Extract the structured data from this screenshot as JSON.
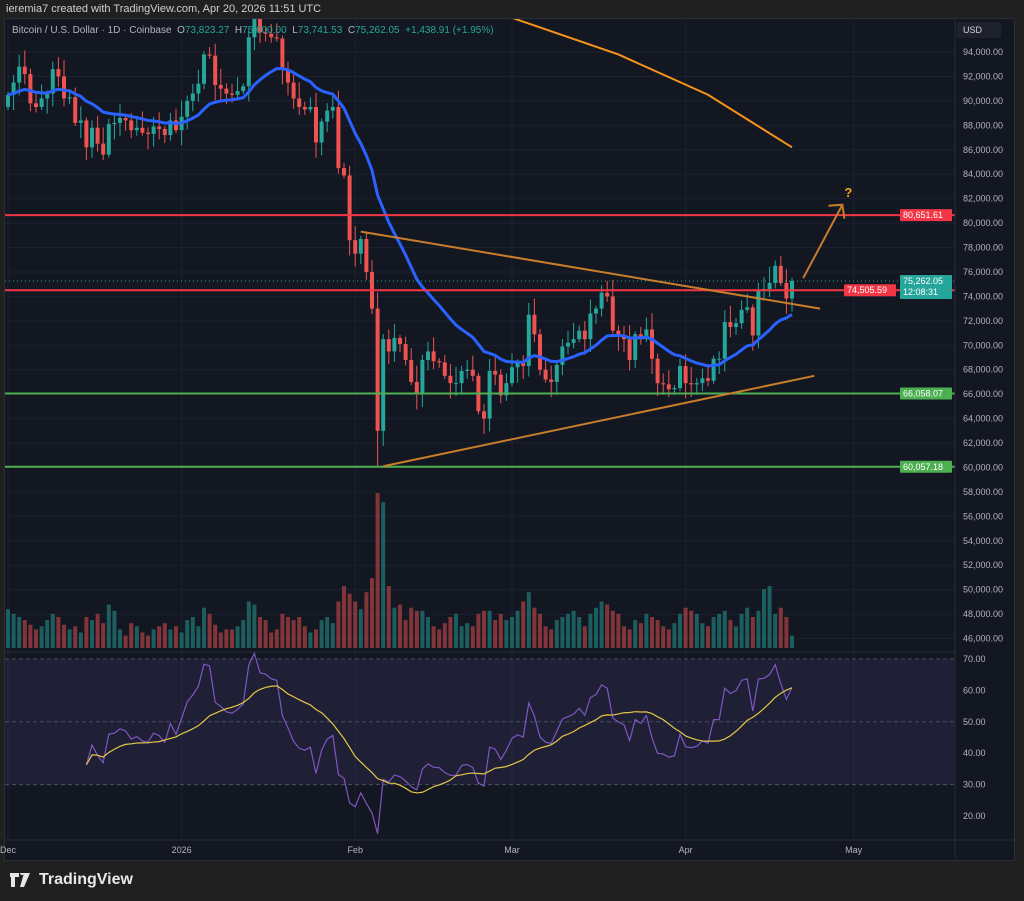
{
  "credit": "ieremia7 created with TradingView.com, Apr 20, 2026 11:51 UTC",
  "brand": "TradingView",
  "legend": {
    "symbol": "Bitcoin / U.S. Dollar · 1D · Coinbase",
    "o_label": "O",
    "o": "73,823.27",
    "h_label": "H",
    "h": "75,600.00",
    "l_label": "L",
    "l": "73,741.53",
    "c_label": "C",
    "c": "75,262.05",
    "change": "+1,438.91 (+1.95%)"
  },
  "currency": "USD",
  "price_badges": {
    "last": "75,262.05",
    "countdown": "12:08:31",
    "resistance": "80,651.61",
    "breakout_level": "74,505.59",
    "support_1": "66,058.07",
    "support_2": "60,057.18"
  },
  "annotation_text": "?",
  "colors": {
    "up": "#26a69a",
    "down": "#ef5350",
    "ma_fast": "#2962ff",
    "ma_slow": "#f7931a",
    "trendline": "#c87d2a",
    "resistance": "#f23645",
    "support": "#4caf50",
    "rsi": "#7e57c2",
    "rsi_ma": "#e3c74a"
  },
  "chart_data": {
    "type": "candlestick",
    "start_date": "2025-12-01",
    "x_ticks": [
      {
        "label": "Dec",
        "date": "2025-12-01"
      },
      {
        "label": "2026",
        "date": "2026-01-01"
      },
      {
        "label": "Feb",
        "date": "2026-02-01"
      },
      {
        "label": "Mar",
        "date": "2026-03-01"
      },
      {
        "label": "Apr",
        "date": "2026-04-01"
      },
      {
        "label": "May",
        "date": "2026-05-01"
      }
    ],
    "y_ticks": [
      46000,
      48000,
      50000,
      52000,
      54000,
      56000,
      58000,
      60000,
      62000,
      64000,
      66000,
      68000,
      70000,
      72000,
      74000,
      76000,
      78000,
      80000,
      82000,
      84000,
      86000,
      88000,
      90000,
      92000,
      94000
    ],
    "y_tick_labels": [
      "46,000.00",
      "48,000.00",
      "50,000.00",
      "52,000.00",
      "54,000.00",
      "56,000.00",
      "58,000.00",
      "60,000.00",
      "62,000.00",
      "64,000.00",
      "66,000.00",
      "68,000.00",
      "70,000.00",
      "72,000.00",
      "74,000.00",
      "76,000.00",
      "78,000.00",
      "80,000.00",
      "82,000.00",
      "84,000.00",
      "86,000.00",
      "88,000.00",
      "90,000.00",
      "92,000.00",
      "94,000.00"
    ],
    "first_open": 89500,
    "closes": [
      90500,
      91500,
      92800,
      92200,
      89800,
      89500,
      90200,
      90600,
      92600,
      92000,
      90200,
      90300,
      88200,
      88400,
      86200,
      87800,
      86500,
      85600,
      88100,
      88200,
      88600,
      88400,
      87600,
      87800,
      87400,
      87300,
      87900,
      87700,
      87200,
      88400,
      87600,
      88700,
      90000,
      90600,
      91400,
      93800,
      93700,
      91300,
      91000,
      90600,
      90500,
      90800,
      91200,
      95200,
      96900,
      95600,
      95500,
      95200,
      95100,
      92600,
      91500,
      90200,
      89500,
      89300,
      89500,
      86600,
      88300,
      89200,
      89500,
      84500,
      83900,
      78600,
      77500,
      78700,
      76000,
      73000,
      63000,
      70500,
      69500,
      70600,
      70100,
      68800,
      67000,
      66000,
      68800,
      69500,
      68700,
      68600,
      67500,
      66900,
      66900,
      67900,
      68000,
      67500,
      64600,
      64000,
      67900,
      67600,
      65900,
      66900,
      68200,
      68600,
      68300,
      72500,
      70900,
      68000,
      67200,
      67000,
      68400,
      69900,
      70200,
      70500,
      71200,
      70500,
      72600,
      73000,
      74300,
      74000,
      71200,
      70800,
      70500,
      68800,
      70900,
      70500,
      71300,
      68900,
      66900,
      66800,
      66400,
      66500,
      68300,
      66900,
      66800,
      66900,
      67300,
      67100,
      68900,
      68900,
      71900,
      71500,
      71800,
      72900,
      73100,
      70800,
      74500,
      74600,
      75100,
      76500,
      75100,
      73823.27,
      75262.05
    ],
    "volume_relative": [
      25,
      22,
      20,
      18,
      15,
      12,
      14,
      18,
      22,
      20,
      15,
      12,
      14,
      10,
      20,
      18,
      22,
      16,
      28,
      24,
      12,
      8,
      16,
      14,
      10,
      8,
      12,
      14,
      16,
      12,
      14,
      10,
      18,
      20,
      14,
      26,
      22,
      15,
      10,
      12,
      12,
      14,
      18,
      30,
      28,
      20,
      18,
      10,
      12,
      22,
      20,
      18,
      20,
      14,
      10,
      12,
      18,
      20,
      16,
      30,
      40,
      35,
      30,
      25,
      36,
      45,
      100,
      94,
      40,
      26,
      28,
      18,
      26,
      24,
      24,
      20,
      14,
      12,
      16,
      20,
      22,
      14,
      16,
      14,
      22,
      24,
      24,
      18,
      22,
      18,
      20,
      24,
      30,
      36,
      26,
      22,
      14,
      12,
      18,
      20,
      22,
      24,
      20,
      14,
      22,
      26,
      30,
      28,
      24,
      22,
      14,
      12,
      18,
      16,
      22,
      20,
      18,
      14,
      12,
      16,
      22,
      26,
      24,
      22,
      16,
      14,
      20,
      22,
      24,
      18,
      14,
      22,
      26,
      20,
      24,
      38,
      40,
      22,
      26,
      20,
      8
    ],
    "moving_average_slow": [
      [
        "2026-03-01",
        96800
      ],
      [
        "2026-03-20",
        93800
      ],
      [
        "2026-04-05",
        90500
      ],
      [
        "2026-04-20",
        86200
      ]
    ],
    "horizontal_levels": [
      {
        "price": 80651.61,
        "kind": "resistance"
      },
      {
        "price": 74505.59,
        "kind": "resistance"
      },
      {
        "price": 66058.07,
        "kind": "support"
      },
      {
        "price": 60057.18,
        "kind": "support"
      }
    ],
    "trendlines": [
      {
        "from": [
          "2026-02-02",
          79300
        ],
        "to": [
          "2026-04-25",
          73000
        ]
      },
      {
        "from": [
          "2026-02-06",
          60100
        ],
        "to": [
          "2026-04-24",
          67500
        ]
      }
    ],
    "arrow": {
      "from": [
        "2026-04-22",
        75500
      ],
      "to": [
        "2026-04-29",
        81500
      ]
    },
    "rsi": {
      "y_ticks": [
        20,
        30,
        40,
        50,
        60,
        70
      ],
      "y_tick_labels": [
        "20.00",
        "30.00",
        "40.00",
        "50.00",
        "60.00",
        "70.00"
      ],
      "upper": 70,
      "middle": 50,
      "lower": 30
    }
  }
}
